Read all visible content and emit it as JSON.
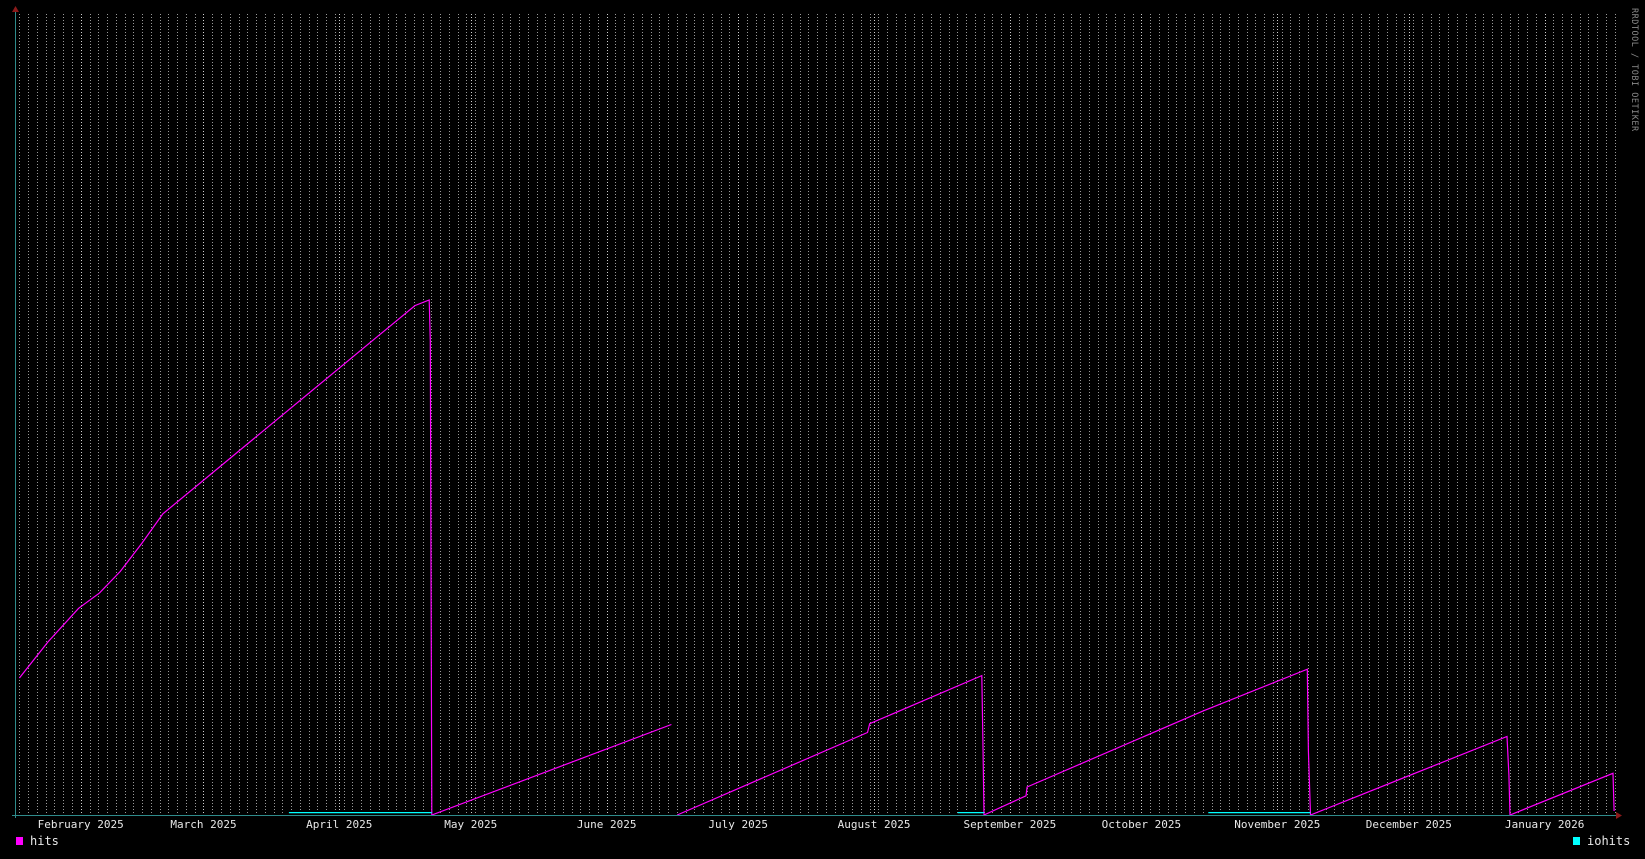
{
  "watermark": "RRDTOOL / TOBI OETIKER",
  "chart_data": {
    "type": "line",
    "title": "",
    "xlabel": "",
    "ylabel": "",
    "x_range": [
      "2025-01-17",
      "2026-01-18"
    ],
    "ylim": [
      0,
      100
    ],
    "y_tick_labels": false,
    "grid": true,
    "legend_placement": "bottom",
    "background": "#000000",
    "x_tick_labels": [
      {
        "date": "2025-02-01",
        "label": "February 2025"
      },
      {
        "date": "2025-03-01",
        "label": "March 2025"
      },
      {
        "date": "2025-04-01",
        "label": "April 2025"
      },
      {
        "date": "2025-05-01",
        "label": "May 2025"
      },
      {
        "date": "2025-06-01",
        "label": "June 2025"
      },
      {
        "date": "2025-07-01",
        "label": "July 2025"
      },
      {
        "date": "2025-08-01",
        "label": "August 2025"
      },
      {
        "date": "2025-09-01",
        "label": "September 2025"
      },
      {
        "date": "2025-10-01",
        "label": "October 2025"
      },
      {
        "date": "2025-11-01",
        "label": "November 2025"
      },
      {
        "date": "2025-12-01",
        "label": "December 2025"
      },
      {
        "date": "2026-01-01",
        "label": "January 2026"
      }
    ],
    "series": [
      {
        "name": "hits",
        "color": "#ff00ff",
        "segments": [
          [
            [
              "2025-01-18T00",
              17.1
            ],
            [
              "2025-01-24T12",
              21.6
            ],
            [
              "2025-01-31T12",
              25.8
            ],
            [
              "2025-02-05T06",
              27.7
            ],
            [
              "2025-02-10T00",
              30.4
            ],
            [
              "2025-02-14T22",
              33.9
            ],
            [
              "2025-02-19T18",
              37.6
            ],
            [
              "2025-04-18T06",
              63.6
            ],
            [
              "2025-04-21T12",
              64.3
            ],
            [
              "2025-04-21T18",
              59.2
            ],
            [
              "2025-04-22T02",
              0
            ],
            [
              "2025-06-15T18",
              11.3
            ]
          ],
          [
            [
              "2025-06-17T02",
              0
            ],
            [
              "2025-07-30T12",
              10.3
            ],
            [
              "2025-07-31T00",
              11.4
            ],
            [
              "2025-08-25T14",
              17.4
            ],
            [
              "2025-08-25T20",
              9.3
            ],
            [
              "2025-08-26T02",
              0
            ],
            [
              "2025-09-04T16",
              2.4
            ],
            [
              "2025-09-04T22",
              3.5
            ],
            [
              "2025-10-15T02",
              13.0
            ],
            [
              "2025-11-07T20",
              18.2
            ],
            [
              "2025-11-08T02",
              8.0
            ],
            [
              "2025-11-08T14",
              0
            ],
            [
              "2025-12-23T10",
              9.8
            ],
            [
              "2025-12-23T20",
              5.0
            ],
            [
              "2025-12-24T02",
              0
            ],
            [
              "2026-01-16T14",
              5.2
            ],
            [
              "2026-01-16T20",
              0.5
            ]
          ]
        ]
      },
      {
        "name": "iohits",
        "color": "#00ffff",
        "segments": [
          [
            [
              "2025-03-20T12",
              0.3
            ],
            [
              "2025-04-22T02",
              0.3
            ]
          ],
          [
            [
              "2025-08-20T02",
              0.3
            ],
            [
              "2025-08-26T02",
              0.3
            ]
          ],
          [
            [
              "2025-10-16T06",
              0.3
            ],
            [
              "2025-11-08T14",
              0.3
            ]
          ]
        ]
      }
    ]
  }
}
